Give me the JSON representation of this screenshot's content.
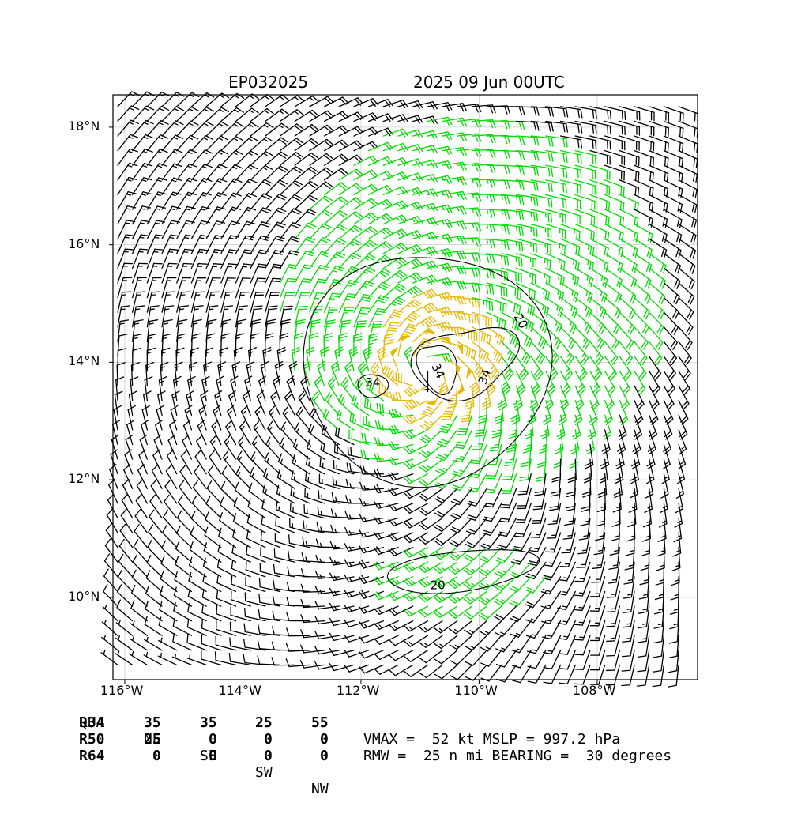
{
  "chart_data": {
    "type": "map_wind_barbs",
    "title_left": "EP032025",
    "title_right": "2025 09 Jun 00UTC",
    "xlim": [
      -116.2,
      -106.3
    ],
    "ylim": [
      8.6,
      18.55
    ],
    "x_ticks": [
      {
        "value": -116,
        "label": "116°W"
      },
      {
        "value": -114,
        "label": "114°W"
      },
      {
        "value": -112,
        "label": "112°W"
      },
      {
        "value": -110,
        "label": "110°W"
      },
      {
        "value": -108,
        "label": "108°W"
      }
    ],
    "y_ticks": [
      {
        "value": 10,
        "label": "10°N"
      },
      {
        "value": 12,
        "label": "12°N"
      },
      {
        "value": 14,
        "label": "14°N"
      },
      {
        "value": 16,
        "label": "16°N"
      },
      {
        "value": 18,
        "label": "18°N"
      }
    ],
    "grid": true,
    "center": {
      "lon": -110.9,
      "lat": 13.9
    },
    "contour_labels": [
      {
        "text": "34",
        "lon": -111.8,
        "lat": 13.65
      },
      {
        "text": "34",
        "lon": -110.7,
        "lat": 13.85,
        "rotation": 65
      },
      {
        "text": "34",
        "lon": -109.9,
        "lat": 13.75,
        "rotation": -70
      },
      {
        "text": "20",
        "lon": -109.3,
        "lat": 14.7,
        "rotation": 60
      },
      {
        "text": "20",
        "lon": -110.7,
        "lat": 10.2
      }
    ],
    "barb_colors": {
      "calm": "#000000",
      "gale": "#00dd00",
      "storm": "#e6b800"
    }
  },
  "radii_table": {
    "header": [
      "QUA",
      "NE",
      "SE",
      "SW",
      "NW"
    ],
    "rows": [
      [
        "R34",
        "35",
        "35",
        "25",
        "55"
      ],
      [
        "R50",
        "25",
        "0",
        "0",
        "0"
      ],
      [
        "R64",
        "0",
        "0",
        "0",
        "0"
      ]
    ]
  },
  "summary": {
    "line1": "VMAX =  52 kt MSLP = 997.2 hPa",
    "line2": "RMW =  25 n mi BEARING =  30 degrees"
  }
}
